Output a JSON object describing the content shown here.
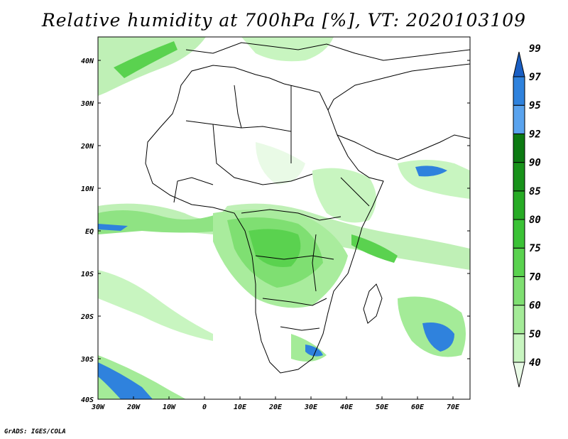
{
  "title": "Relative humidity at 700hPa [%], VT: 2020103109",
  "credit": "GrADS: IGES/COLA",
  "axes": {
    "lat_labels": [
      "40N",
      "30N",
      "20N",
      "10N",
      "EQ",
      "10S",
      "20S",
      "30S",
      "40S"
    ],
    "lon_labels": [
      "30W",
      "20W",
      "10W",
      "0",
      "10E",
      "20E",
      "30E",
      "40E",
      "50E",
      "60E",
      "70E"
    ]
  },
  "colorbar": {
    "levels": [
      "40",
      "50",
      "60",
      "70",
      "75",
      "80",
      "85",
      "90",
      "92",
      "95",
      "97",
      "99"
    ],
    "colors": [
      "#e9fae6",
      "#c8f5c0",
      "#a4eb98",
      "#7fdf72",
      "#5ad24f",
      "#3bc236",
      "#27ab25",
      "#18921a",
      "#0c7a12",
      "#5aa3ee",
      "#2f82dd",
      "#1a5fc4"
    ]
  },
  "map": {
    "extent": "30W-75E, 40S-45N",
    "land_color": "#ffffff",
    "border_color": "#000000"
  }
}
